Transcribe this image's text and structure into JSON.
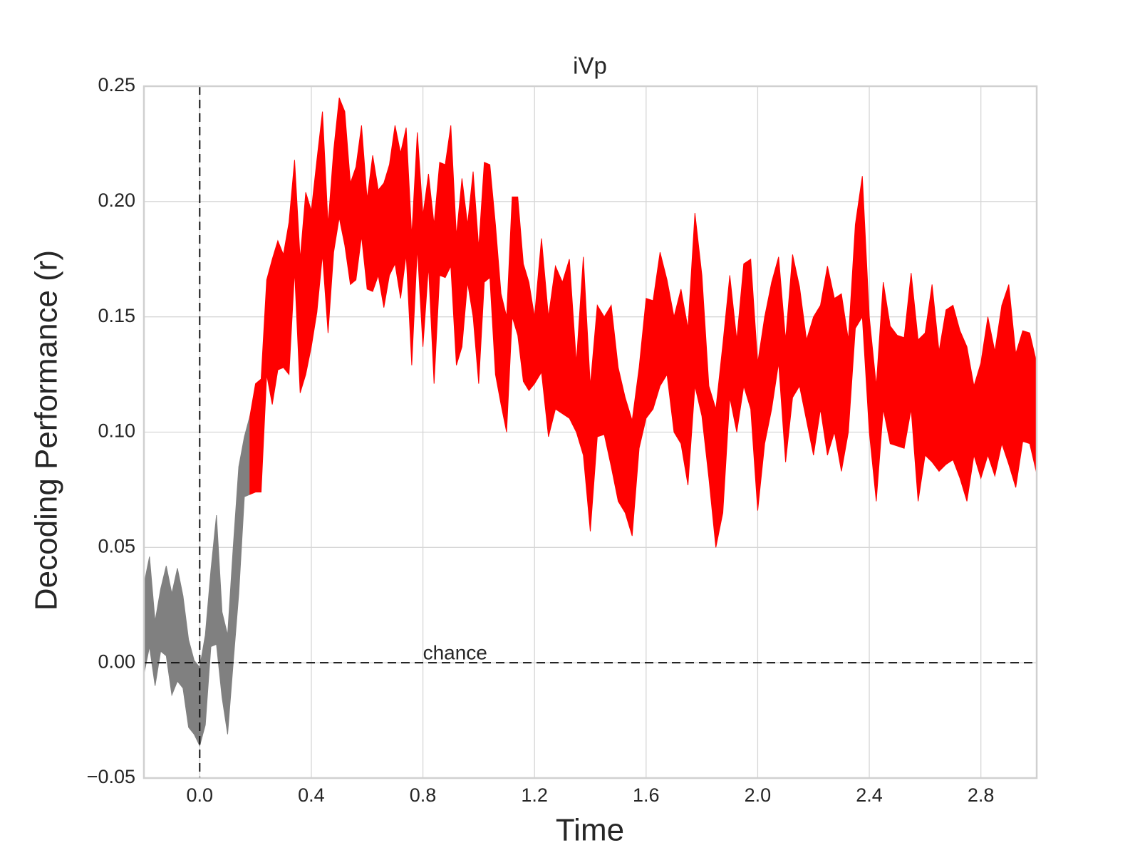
{
  "chart_data": {
    "type": "band",
    "title": "iVp",
    "xlabel": "Time",
    "ylabel": "Decoding Performance (r)",
    "xlim": [
      -0.2,
      3.0
    ],
    "ylim": [
      -0.05,
      0.25
    ],
    "xticks": [
      {
        "value": 0,
        "label": "0.0"
      },
      0.4,
      0.8,
      1.2,
      1.6,
      {
        "value": 2,
        "label": "2.0"
      },
      2.4,
      2.8
    ],
    "yticks": [
      {
        "value": -0.05,
        "label": "−0.05"
      },
      {
        "value": 0,
        "label": "0.00"
      },
      {
        "value": 0.05,
        "label": "0.05"
      },
      {
        "value": 0.1,
        "label": "0.10"
      },
      {
        "value": 0.15,
        "label": "0.15"
      },
      {
        "value": 0.2,
        "label": "0.20"
      },
      {
        "value": 0.25,
        "label": "0.25"
      }
    ],
    "grid": true,
    "hlines": [
      0
    ],
    "vlines": [
      0
    ],
    "annotations": [
      {
        "text": "chance",
        "x": 0.8,
        "y": 0
      }
    ],
    "series": [
      {
        "color": "#808080",
        "x": [
          -0.2,
          -0.18,
          -0.16,
          -0.14,
          -0.12,
          -0.1,
          -0.08,
          -0.06,
          -0.04,
          -0.02,
          0,
          0.02,
          0.04,
          0.06,
          0.08,
          0.1,
          0.12,
          0.14,
          0.16,
          0.18
        ],
        "y1": [
          -0.005,
          0.007,
          -0.01,
          0.005,
          0.003,
          -0.014,
          -0.008,
          -0.011,
          -0.028,
          -0.031,
          -0.036,
          -0.027,
          0.007,
          0.008,
          -0.015,
          -0.031,
          0,
          0.03,
          0.072,
          0.073
        ],
        "y2": [
          0.034,
          0.046,
          0.018,
          0.032,
          0.042,
          0.03,
          0.041,
          0.029,
          0.01,
          0.001,
          -0.002,
          0.012,
          0.04,
          0.064,
          0.022,
          0.012,
          0.05,
          0.085,
          0.098,
          0.107
        ]
      },
      {
        "color": "#ff0000",
        "x": [
          0.18,
          0.2,
          0.22,
          0.24,
          0.26,
          0.28,
          0.3,
          0.32,
          0.34,
          0.36,
          0.38,
          0.4,
          0.42,
          0.44,
          0.46,
          0.48,
          0.5,
          0.52,
          0.54,
          0.56,
          0.58,
          0.6,
          0.62,
          0.64,
          0.66,
          0.68,
          0.7,
          0.72,
          0.74,
          0.76,
          0.78,
          0.8,
          0.82,
          0.84,
          0.86,
          0.88,
          0.9,
          0.92,
          0.94,
          0.96,
          0.98,
          1,
          1.02,
          1.04,
          1.06,
          1.08,
          1.1,
          1.12,
          1.14,
          1.16,
          1.18,
          1.2,
          1.225,
          1.25,
          1.275,
          1.3,
          1.325,
          1.35,
          1.375,
          1.4,
          1.425,
          1.45,
          1.475,
          1.5,
          1.525,
          1.55,
          1.575,
          1.6,
          1.625,
          1.65,
          1.675,
          1.7,
          1.725,
          1.75,
          1.775,
          1.8,
          1.825,
          1.85,
          1.875,
          1.9,
          1.925,
          1.95,
          1.975,
          2,
          2.025,
          2.05,
          2.075,
          2.1,
          2.125,
          2.15,
          2.175,
          2.2,
          2.225,
          2.25,
          2.275,
          2.3,
          2.325,
          2.35,
          2.375,
          2.4,
          2.425,
          2.45,
          2.475,
          2.5,
          2.525,
          2.55,
          2.575,
          2.6,
          2.625,
          2.65,
          2.675,
          2.7,
          2.725,
          2.75,
          2.775,
          2.8,
          2.825,
          2.85,
          2.875,
          2.9,
          2.925,
          2.95,
          2.975,
          3
        ],
        "y1": [
          0.073,
          0.074,
          0.074,
          0.125,
          0.112,
          0.127,
          0.128,
          0.125,
          0.17,
          0.117,
          0.125,
          0.137,
          0.152,
          0.177,
          0.143,
          0.178,
          0.193,
          0.181,
          0.164,
          0.166,
          0.185,
          0.162,
          0.161,
          0.168,
          0.154,
          0.168,
          0.173,
          0.158,
          0.177,
          0.129,
          0.18,
          0.137,
          0.172,
          0.121,
          0.168,
          0.167,
          0.172,
          0.129,
          0.137,
          0.165,
          0.15,
          0.121,
          0.165,
          0.167,
          0.125,
          0.112,
          0.1,
          0.15,
          0.142,
          0.122,
          0.118,
          0.121,
          0.126,
          0.098,
          0.11,
          0.108,
          0.106,
          0.1,
          0.09,
          0.057,
          0.098,
          0.099,
          0.085,
          0.07,
          0.065,
          0.055,
          0.093,
          0.106,
          0.11,
          0.12,
          0.125,
          0.1,
          0.095,
          0.077,
          0.12,
          0.107,
          0.08,
          0.05,
          0.065,
          0.115,
          0.1,
          0.12,
          0.11,
          0.066,
          0.095,
          0.11,
          0.13,
          0.087,
          0.115,
          0.12,
          0.105,
          0.09,
          0.11,
          0.09,
          0.1,
          0.083,
          0.1,
          0.145,
          0.15,
          0.1,
          0.07,
          0.11,
          0.095,
          0.094,
          0.093,
          0.11,
          0.07,
          0.09,
          0.087,
          0.083,
          0.086,
          0.088,
          0.08,
          0.07,
          0.09,
          0.08,
          0.09,
          0.081,
          0.095,
          0.086,
          0.076,
          0.096,
          0.095,
          0.082
        ],
        "y2": [
          0.107,
          0.121,
          0.123,
          0.166,
          0.175,
          0.183,
          0.177,
          0.191,
          0.218,
          0.175,
          0.204,
          0.196,
          0.218,
          0.239,
          0.19,
          0.222,
          0.245,
          0.239,
          0.208,
          0.215,
          0.233,
          0.201,
          0.22,
          0.205,
          0.208,
          0.216,
          0.233,
          0.221,
          0.232,
          0.185,
          0.23,
          0.194,
          0.212,
          0.19,
          0.217,
          0.216,
          0.233,
          0.185,
          0.21,
          0.19,
          0.213,
          0.18,
          0.217,
          0.216,
          0.19,
          0.16,
          0.15,
          0.202,
          0.202,
          0.173,
          0.165,
          0.15,
          0.184,
          0.15,
          0.172,
          0.165,
          0.175,
          0.13,
          0.176,
          0.12,
          0.155,
          0.15,
          0.155,
          0.128,
          0.115,
          0.105,
          0.128,
          0.158,
          0.157,
          0.178,
          0.166,
          0.15,
          0.162,
          0.145,
          0.195,
          0.168,
          0.12,
          0.11,
          0.138,
          0.168,
          0.14,
          0.173,
          0.175,
          0.13,
          0.15,
          0.165,
          0.176,
          0.14,
          0.177,
          0.163,
          0.14,
          0.15,
          0.155,
          0.172,
          0.158,
          0.16,
          0.14,
          0.19,
          0.211,
          0.15,
          0.12,
          0.165,
          0.146,
          0.142,
          0.141,
          0.169,
          0.14,
          0.143,
          0.164,
          0.135,
          0.153,
          0.155,
          0.144,
          0.137,
          0.12,
          0.13,
          0.15,
          0.135,
          0.155,
          0.164,
          0.134,
          0.144,
          0.143,
          0.13
        ]
      }
    ]
  }
}
